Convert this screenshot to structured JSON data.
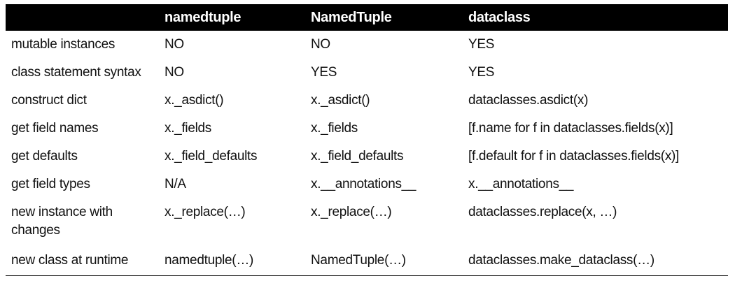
{
  "table": {
    "headers": [
      "",
      "namedtuple",
      "NamedTuple",
      "dataclass"
    ],
    "rows": [
      [
        "mutable instances",
        "NO",
        "NO",
        "YES"
      ],
      [
        "class statement syntax",
        "NO",
        "YES",
        "YES"
      ],
      [
        "construct dict",
        "x._asdict()",
        "x._asdict()",
        "dataclasses.asdict(x)"
      ],
      [
        "get field names",
        "x._fields",
        "x._fields",
        "[f.name for f in dataclasses.fields(x)]"
      ],
      [
        "get defaults",
        "x._field_defaults",
        "x._field_defaults",
        "[f.default for f in dataclasses.fields(x)]"
      ],
      [
        "get field types",
        "N/A",
        "x.__annotations__",
        "x.__annotations__"
      ],
      [
        "new instance with changes",
        "x._replace(…)",
        "x._replace(…)",
        "dataclasses.replace(x, …)"
      ],
      [
        "new class at runtime",
        "namedtuple(…)",
        "NamedTuple(…)",
        "dataclasses.make_dataclass(…)"
      ]
    ]
  }
}
